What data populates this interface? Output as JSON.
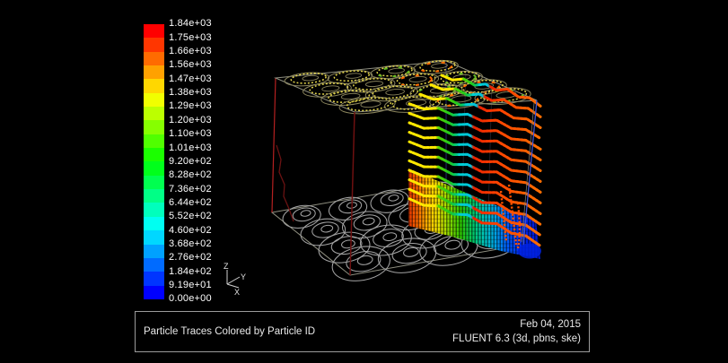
{
  "caption": {
    "title": "Particle Traces Colored by Particle ID",
    "date": "Feb 04, 2015",
    "software": "FLUENT 6.3 (3d, pbns, ske)"
  },
  "axis_triad": {
    "x_label": "X",
    "y_label": "Y",
    "z_label": "Z"
  },
  "legend": {
    "labels": [
      "1.84e+03",
      "1.75e+03",
      "1.66e+03",
      "1.56e+03",
      "1.47e+03",
      "1.38e+03",
      "1.29e+03",
      "1.20e+03",
      "1.10e+03",
      "1.01e+03",
      "9.20e+02",
      "8.28e+02",
      "7.36e+02",
      "6.44e+02",
      "5.52e+02",
      "4.60e+02",
      "3.68e+02",
      "2.76e+02",
      "1.84e+02",
      "9.19e+01",
      "0.00e+00"
    ],
    "band_colors": [
      "#ff0000",
      "#ff3600",
      "#ff6b00",
      "#ffa100",
      "#ffd700",
      "#f1ff00",
      "#bcff00",
      "#86ff00",
      "#50ff00",
      "#1bff00",
      "#00ff1b",
      "#00ff50",
      "#00ff86",
      "#00ffbc",
      "#00fff1",
      "#00d7ff",
      "#00a1ff",
      "#006bff",
      "#0035ff",
      "#0000ff"
    ]
  },
  "colors": {
    "edge_gray": "#8f8f80",
    "edge_red": "#b42020",
    "edge_dark_red": "#6e1010",
    "edge_blue": "#3c55d6",
    "edge_faint_blue": "#26337f",
    "edge_faint": "#444455",
    "trace_red": "#6a1212",
    "top_swirl_dim": "#8a845c",
    "top_swirl_bright": "#e2d44a",
    "top_swirl_accent_warm": "#ff6a00",
    "top_swirl_accent_green": "#66bb22",
    "bottom_swirl": "#a2a2a2",
    "streak_orange": "#ff5200",
    "corner_blue": "#0022e0",
    "row_stops": [
      [
        "0",
        "#ffe800"
      ],
      [
        "0.20",
        "#ffe800"
      ],
      [
        "0.22",
        "#5ad400"
      ],
      [
        "0.31",
        "#1ec81e"
      ],
      [
        "0.36",
        "#00c87f"
      ],
      [
        "0.38",
        "#00d2d2"
      ],
      [
        "0.47",
        "#00c0dc"
      ],
      [
        "0.49",
        "#e82200"
      ],
      [
        "0.63",
        "#ff3c00"
      ],
      [
        "0.78",
        "#ff5200"
      ],
      [
        "1",
        "#ff6e00"
      ]
    ],
    "wall_stops": [
      [
        "0",
        "#e83500"
      ],
      [
        "0.07",
        "#ff6a00"
      ],
      [
        "0.14",
        "#ffae00"
      ],
      [
        "0.21",
        "#ffe400"
      ],
      [
        "0.30",
        "#96dc00"
      ],
      [
        "0.40",
        "#2cc800"
      ],
      [
        "0.50",
        "#00c86e"
      ],
      [
        "0.58",
        "#00c8c0"
      ],
      [
        "0.66",
        "#00a4e4"
      ],
      [
        "0.75",
        "#0060ff"
      ],
      [
        "0.86",
        "#002af0"
      ],
      [
        "1",
        "#0016d4"
      ]
    ]
  },
  "chart_data": {
    "type": "scatter",
    "title": "Particle Traces Colored by Particle ID",
    "annotations": [
      "Feb 04, 2015",
      "FLUENT 6.3 (3d, pbns, ske)"
    ],
    "colorbar": {
      "quantity": "Particle ID",
      "orientation": "vertical",
      "position": "left",
      "min": 0,
      "max": 1840,
      "n_bands": 20,
      "ticks": [
        1840,
        1750,
        1660,
        1560,
        1470,
        1380,
        1290,
        1200,
        1100,
        1010,
        920,
        828,
        736,
        644,
        552,
        460,
        368,
        276,
        184,
        91.9,
        0
      ],
      "tick_labels": [
        "1.84e+03",
        "1.75e+03",
        "1.66e+03",
        "1.56e+03",
        "1.47e+03",
        "1.38e+03",
        "1.29e+03",
        "1.20e+03",
        "1.10e+03",
        "1.01e+03",
        "9.20e+02",
        "8.28e+02",
        "7.36e+02",
        "6.44e+02",
        "5.52e+02",
        "4.60e+02",
        "3.68e+02",
        "2.76e+02",
        "1.84e+02",
        "9.19e+01",
        "0.00e+00"
      ],
      "color_scale": "rainbow blue-to-red"
    },
    "scene": {
      "view": "3D perspective wireframe box, viewed from upper front-left",
      "top_face": "4x4 grid of swirling vortex particle traces, yellow/olive with orange accents",
      "bottom_face": "4x4 grid of swirling vortex trace outlines in gray",
      "curtain": "dense curtain of particle traces on interior right wall; ~14 stacked wavy dotted rows colored yellow-green-cyan-red left to right, above a dense gradient wall running red-orange-yellow-green-cyan-blue toward bottom-right corner",
      "n_trace_rows": 14,
      "edge_colors": {
        "back_left": "red",
        "front_left": "dark red",
        "front_right": "blue",
        "others": "gray"
      }
    }
  }
}
